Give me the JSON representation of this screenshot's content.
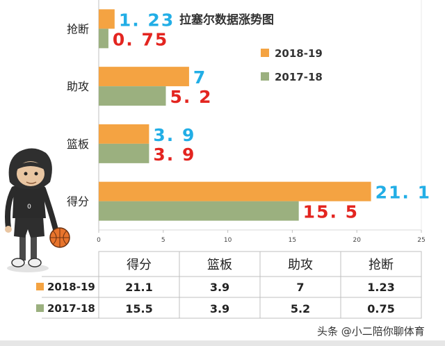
{
  "chart_data": {
    "type": "bar",
    "orientation": "horizontal",
    "title": "拉塞尔数据涨势图",
    "categories": [
      "抢断",
      "助攻",
      "篮板",
      "得分"
    ],
    "series": [
      {
        "name": "2018-19",
        "color": "#f4a342",
        "values": [
          1.23,
          7,
          3.9,
          21.1
        ],
        "labels": [
          "1. 23",
          "7",
          "3. 9",
          "21. 1"
        ]
      },
      {
        "name": "2017-18",
        "color": "#9bb07f",
        "values": [
          0.75,
          5.2,
          3.9,
          15.5
        ],
        "labels": [
          "0. 75",
          "5. 2",
          "3. 9",
          "15. 5"
        ]
      }
    ],
    "xlim": [
      0,
      25
    ],
    "xticks": [
      0,
      5,
      10,
      15,
      20,
      25
    ],
    "grid": false,
    "legend": "top-right"
  },
  "table": {
    "headers": [
      "得分",
      "篮板",
      "助攻",
      "抢断"
    ],
    "rows": [
      {
        "series": "2018-19",
        "color": "#f4a342",
        "cells": [
          "21.1",
          "3.9",
          "7",
          "1.23"
        ]
      },
      {
        "series": "2017-18",
        "color": "#9bb07f",
        "cells": [
          "15.5",
          "3.9",
          "5.2",
          "0.75"
        ]
      }
    ]
  },
  "watermark": "头条 @小二陪你聊体育",
  "illustration": "cartoon-basketball-player-icon"
}
